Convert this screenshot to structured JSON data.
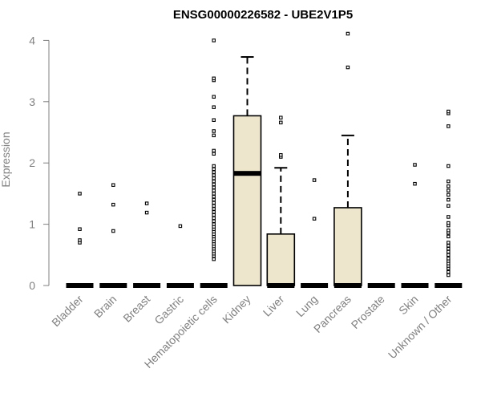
{
  "chart_data": {
    "type": "boxplot",
    "title": "ENSG00000226582 - UBE2V1P5",
    "xlabel": "",
    "ylabel": "Expression",
    "ylim": [
      0,
      4.1
    ],
    "y_ticks": [
      "0",
      "1",
      "2",
      "3",
      "4"
    ],
    "grid": false,
    "box_fill": "#ede6cd",
    "categories": [
      "Bladder",
      "Brain",
      "Breast",
      "Gastric",
      "Hematopoietic cells",
      "Kidney",
      "Liver",
      "Lung",
      "Pancreas",
      "Prostate",
      "Skin",
      "Unknown / Other"
    ],
    "boxes": [
      {
        "q1": 0,
        "median": 0,
        "q3": 0,
        "whisker_low": 0,
        "whisker_high": 0,
        "outliers": [
          0.7,
          0.74,
          0.92,
          1.5
        ]
      },
      {
        "q1": 0,
        "median": 0,
        "q3": 0,
        "whisker_low": 0,
        "whisker_high": 0,
        "outliers": [
          0.89,
          1.32,
          1.64
        ]
      },
      {
        "q1": 0,
        "median": 0,
        "q3": 0,
        "whisker_low": 0,
        "whisker_high": 0,
        "outliers": [
          1.19,
          1.34
        ]
      },
      {
        "q1": 0,
        "median": 0,
        "q3": 0,
        "whisker_low": 0,
        "whisker_high": 0,
        "outliers": [
          0.97
        ]
      },
      {
        "q1": 0,
        "median": 0,
        "q3": 0,
        "whisker_low": 0,
        "whisker_high": 0,
        "outliers": [
          0.43,
          0.48,
          0.52,
          0.56,
          0.6,
          0.64,
          0.68,
          0.72,
          0.76,
          0.8,
          0.84,
          0.88,
          0.92,
          0.96,
          1.0,
          1.05,
          1.1,
          1.15,
          1.2,
          1.25,
          1.3,
          1.35,
          1.4,
          1.45,
          1.5,
          1.55,
          1.6,
          1.65,
          1.7,
          1.75,
          1.8,
          1.85,
          1.9,
          1.95,
          2.15,
          2.2,
          2.45,
          2.52,
          2.7,
          2.91,
          3.08,
          3.35,
          3.38,
          4.0
        ]
      },
      {
        "q1": 0,
        "median": 1.83,
        "q3": 2.77,
        "whisker_low": 0,
        "whisker_high": 3.73,
        "outliers": []
      },
      {
        "q1": 0,
        "median": 0,
        "q3": 0.84,
        "whisker_low": 0,
        "whisker_high": 1.92,
        "outliers": [
          2.1,
          2.13,
          2.66,
          2.74
        ]
      },
      {
        "q1": 0,
        "median": 0,
        "q3": 0,
        "whisker_low": 0,
        "whisker_high": 0,
        "outliers": [
          1.09,
          1.72
        ]
      },
      {
        "q1": 0,
        "median": 0,
        "q3": 1.27,
        "whisker_low": 0,
        "whisker_high": 2.45,
        "outliers": [
          3.56,
          4.11
        ]
      },
      {
        "q1": 0,
        "median": 0,
        "q3": 0,
        "whisker_low": 0,
        "whisker_high": 0,
        "outliers": []
      },
      {
        "q1": 0,
        "median": 0,
        "q3": 0,
        "whisker_low": 0,
        "whisker_high": 0,
        "outliers": [
          1.66,
          1.97
        ]
      },
      {
        "q1": 0,
        "median": 0,
        "q3": 0,
        "whisker_low": 0,
        "whisker_high": 0,
        "outliers": [
          0.17,
          0.22,
          0.28,
          0.32,
          0.36,
          0.4,
          0.44,
          0.5,
          0.55,
          0.6,
          0.65,
          0.7,
          0.8,
          0.86,
          0.9,
          0.98,
          1.02,
          1.12,
          1.3,
          1.4,
          1.48,
          1.55,
          1.62,
          1.7,
          1.95,
          2.6,
          2.81,
          2.84
        ]
      }
    ]
  }
}
